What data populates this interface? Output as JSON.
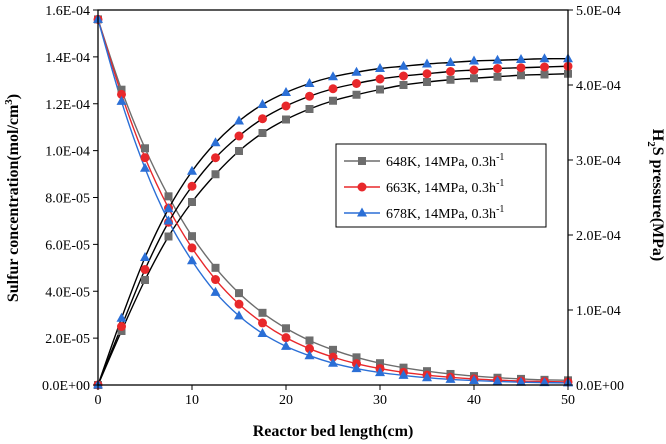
{
  "chart_data": {
    "type": "line",
    "title": "",
    "xlabel": "Reactor bed length(cm)",
    "ylabel": "Sulfur concentration(mol/cm³)",
    "ylabel_parts": {
      "main": "Sulfur concentration(mol/cm",
      "sup": "3",
      "end": ")"
    },
    "y2label": "H₂S pressure(MPa)",
    "y2label_parts": {
      "pre": "H",
      "sub": "2",
      "post": "S pressure(MPa)"
    },
    "xlim": [
      0,
      50
    ],
    "ylim": [
      0,
      0.00016
    ],
    "y2lim": [
      0,
      0.0005
    ],
    "x_ticks": [
      "0",
      "10",
      "20",
      "30",
      "40",
      "50"
    ],
    "y_ticks": [
      "0.0E+00",
      "2.0E-05",
      "4.0E-05",
      "6.0E-05",
      "8.0E-05",
      "1.0E-04",
      "1.2E-04",
      "1.4E-04",
      "1.6E-04"
    ],
    "y2_ticks": [
      "0.0E+00",
      "1.0E-04",
      "2.0E-04",
      "3.0E-04",
      "4.0E-04",
      "5.0E-04"
    ],
    "legend_position": "center-right",
    "x": [
      0,
      2.5,
      5,
      7.5,
      10,
      12.5,
      15,
      17.5,
      20,
      22.5,
      25,
      27.5,
      30,
      32.5,
      35,
      37.5,
      40,
      42.5,
      45,
      47.5,
      50
    ],
    "series": [
      {
        "name": "648K, 14MPa, 0.3h⁻¹",
        "label_main": "648K, 14MPa, 0.3h",
        "label_sup": "-1",
        "color": "#6d6d6d",
        "marker": "square",
        "sulfur": [
          0.000156,
          0.000126,
          0.000101,
          8.05e-05,
          6.35e-05,
          5e-05,
          3.92e-05,
          3.08e-05,
          2.42e-05,
          1.9e-05,
          1.5e-05,
          1.18e-05,
          9.3e-06,
          7.4e-06,
          5.9e-06,
          4.7e-06,
          3.8e-06,
          3.1e-06,
          2.6e-06,
          2.2e-06,
          2e-06
        ],
        "h2s": [
          0,
          7.2e-05,
          0.00014,
          0.000198,
          0.000244,
          0.000281,
          0.000312,
          0.000336,
          0.000354,
          0.000368,
          0.000379,
          0.000387,
          0.000394,
          0.0004,
          0.000404,
          0.000407,
          0.000409,
          0.000411,
          0.000413,
          0.000414,
          0.000415
        ]
      },
      {
        "name": "663K, 14MPa, 0.3h⁻¹",
        "label_main": "663K, 14MPa, 0.3h",
        "label_sup": "-1",
        "color": "#e8282b",
        "marker": "circle",
        "sulfur": [
          0.000156,
          0.000124,
          9.7e-05,
          7.55e-05,
          5.85e-05,
          4.5e-05,
          3.45e-05,
          2.65e-05,
          2.02e-05,
          1.55e-05,
          1.19e-05,
          9.1e-06,
          7e-06,
          5.4e-06,
          4.2e-06,
          3.3e-06,
          2.6e-06,
          2.1e-06,
          1.7e-06,
          1.5e-06,
          1.3e-06
        ],
        "h2s": [
          0,
          7.8e-05,
          0.000154,
          0.000217,
          0.000265,
          0.000303,
          0.000332,
          0.000355,
          0.000372,
          0.000385,
          0.000395,
          0.000402,
          0.000408,
          0.000412,
          0.000415,
          0.000418,
          0.00042,
          0.000422,
          0.000423,
          0.000424,
          0.000425
        ]
      },
      {
        "name": "678K, 14MPa, 0.3h⁻¹",
        "label_main": "678K, 14MPa, 0.3h",
        "label_sup": "-1",
        "color": "#2b6fd6",
        "marker": "triangle",
        "sulfur": [
          0.000156,
          0.000121,
          9.25e-05,
          7e-05,
          5.3e-05,
          3.95e-05,
          2.95e-05,
          2.2e-05,
          1.65e-05,
          1.25e-05,
          9.3e-06,
          7e-06,
          5.3e-06,
          4.1e-06,
          3.1e-06,
          2.4e-06,
          1.9e-06,
          1.5e-06,
          1.2e-06,
          1e-06,
          9e-07
        ],
        "h2s": [
          0,
          8.9e-05,
          0.00017,
          0.000235,
          0.000285,
          0.000323,
          0.000352,
          0.000374,
          0.00039,
          0.000402,
          0.000411,
          0.000417,
          0.000422,
          0.000425,
          0.000428,
          0.00043,
          0.000432,
          0.000433,
          0.000434,
          0.000435,
          0.000435
        ]
      }
    ]
  }
}
